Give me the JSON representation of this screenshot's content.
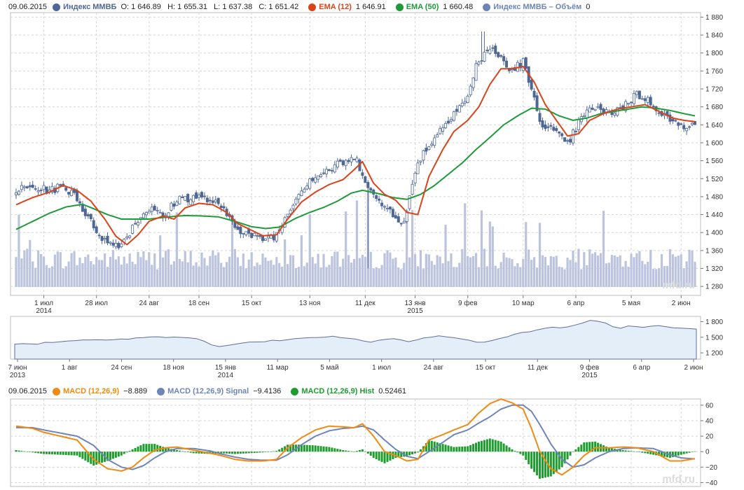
{
  "legend_main": {
    "date": "09.06.2015",
    "instrument": "Индекс ММВБ",
    "ohlc": "O: 1 646.89   H: 1 655.31   L: 1 637.38   C: 1 651.42",
    "ema12_label": "EMA (12)",
    "ema12_value": "1 646.91",
    "ema50_label": "EMA (50)",
    "ema50_value": "1 660.48",
    "volume_label": "Индекс ММВБ – Объём",
    "volume_value": "0"
  },
  "legend_macd": {
    "date": "09.06.2015",
    "macd_label": "MACD (12,26,9)",
    "macd_value": "−8.889",
    "signal_label": "MACD (12,26,9) Signal",
    "signal_value": "−9.4136",
    "hist_label": "MACD (12,26,9) Hist",
    "hist_value": "0.52461"
  },
  "watermark": "mfd.ru",
  "colors": {
    "candle": "#4f6796",
    "ema12": "#d9441a",
    "ema50": "#1f9a3a",
    "volume": "#bcc4dd",
    "macd": "#f08a12",
    "signal": "#6f85b8",
    "hist": "#1e9c2e",
    "nav_line": "#5f6e97",
    "nav_fill": "#e3eef9",
    "grid": "#d5d5d5"
  },
  "chart_data": [
    {
      "type": "candlestick",
      "title": "Индекс ММВБ",
      "ylim": [
        1260,
        1890
      ],
      "y_ticks": [
        "1 880",
        "1 840",
        "1 800",
        "1 760",
        "1 720",
        "1 680",
        "1 640",
        "1 600",
        "1 560",
        "1 520",
        "1 480",
        "1 440",
        "1 400",
        "1 360",
        "1 320",
        "1 280"
      ],
      "y_tick_values": [
        1880,
        1840,
        1800,
        1760,
        1720,
        1680,
        1640,
        1600,
        1560,
        1520,
        1480,
        1440,
        1400,
        1360,
        1320,
        1280
      ],
      "x_ticks": [
        {
          "label": "1 июл",
          "sub": "2014",
          "i": 10
        },
        {
          "label": "28 июл",
          "sub": "",
          "i": 29
        },
        {
          "label": "24 авг",
          "sub": "",
          "i": 48
        },
        {
          "label": "18 сен",
          "sub": "",
          "i": 66
        },
        {
          "label": "15 окт",
          "sub": "",
          "i": 85
        },
        {
          "label": "13 ноя",
          "sub": "",
          "i": 106
        },
        {
          "label": "11 дек",
          "sub": "",
          "i": 126
        },
        {
          "label": "13 янв",
          "sub": "2015",
          "i": 144
        },
        {
          "label": "9 фев",
          "sub": "",
          "i": 163
        },
        {
          "label": "10 мар",
          "sub": "",
          "i": 183
        },
        {
          "label": "6 апр",
          "sub": "",
          "i": 202
        },
        {
          "label": "5 мая",
          "sub": "",
          "i": 222
        },
        {
          "label": "2 июн",
          "sub": "",
          "i": 240
        }
      ],
      "n_bars": 246,
      "close_anchors": [
        [
          0,
          1495
        ],
        [
          6,
          1500
        ],
        [
          10,
          1495
        ],
        [
          16,
          1500
        ],
        [
          21,
          1490
        ],
        [
          26,
          1430
        ],
        [
          33,
          1375
        ],
        [
          38,
          1375
        ],
        [
          44,
          1430
        ],
        [
          49,
          1460
        ],
        [
          53,
          1430
        ],
        [
          58,
          1475
        ],
        [
          65,
          1480
        ],
        [
          71,
          1470
        ],
        [
          76,
          1440
        ],
        [
          82,
          1400
        ],
        [
          88,
          1385
        ],
        [
          94,
          1395
        ],
        [
          100,
          1470
        ],
        [
          106,
          1520
        ],
        [
          113,
          1540
        ],
        [
          119,
          1560
        ],
        [
          123,
          1560
        ],
        [
          126,
          1520
        ],
        [
          130,
          1470
        ],
        [
          135,
          1450
        ],
        [
          140,
          1420
        ],
        [
          145,
          1560
        ],
        [
          152,
          1620
        ],
        [
          158,
          1670
        ],
        [
          163,
          1700
        ],
        [
          166,
          1770
        ],
        [
          170,
          1810
        ],
        [
          175,
          1790
        ],
        [
          178,
          1760
        ],
        [
          183,
          1780
        ],
        [
          189,
          1650
        ],
        [
          194,
          1625
        ],
        [
          199,
          1595
        ],
        [
          203,
          1645
        ],
        [
          208,
          1680
        ],
        [
          213,
          1665
        ],
        [
          219,
          1680
        ],
        [
          224,
          1710
        ],
        [
          230,
          1685
        ],
        [
          236,
          1650
        ],
        [
          240,
          1635
        ],
        [
          245,
          1650
        ]
      ],
      "ema12_anchors": [
        [
          0,
          1462
        ],
        [
          6,
          1478
        ],
        [
          12,
          1490
        ],
        [
          17,
          1505
        ],
        [
          22,
          1494
        ],
        [
          27,
          1470
        ],
        [
          32,
          1430
        ],
        [
          36,
          1392
        ],
        [
          40,
          1373
        ],
        [
          44,
          1395
        ],
        [
          48,
          1425
        ],
        [
          53,
          1437
        ],
        [
          57,
          1430
        ],
        [
          61,
          1455
        ],
        [
          66,
          1465
        ],
        [
          71,
          1462
        ],
        [
          76,
          1445
        ],
        [
          80,
          1420
        ],
        [
          85,
          1405
        ],
        [
          89,
          1393
        ],
        [
          94,
          1395
        ],
        [
          98,
          1430
        ],
        [
          103,
          1468
        ],
        [
          108,
          1490
        ],
        [
          113,
          1507
        ],
        [
          118,
          1518
        ],
        [
          122,
          1540
        ],
        [
          125,
          1558
        ],
        [
          129,
          1510
        ],
        [
          133,
          1485
        ],
        [
          137,
          1472
        ],
        [
          141,
          1445
        ],
        [
          145,
          1440
        ],
        [
          149,
          1525
        ],
        [
          154,
          1585
        ],
        [
          158,
          1625
        ],
        [
          163,
          1650
        ],
        [
          167,
          1680
        ],
        [
          171,
          1730
        ],
        [
          175,
          1765
        ],
        [
          179,
          1765
        ],
        [
          183,
          1770
        ],
        [
          187,
          1735
        ],
        [
          191,
          1685
        ],
        [
          195,
          1650
        ],
        [
          199,
          1615
        ],
        [
          203,
          1620
        ],
        [
          207,
          1650
        ],
        [
          212,
          1665
        ],
        [
          217,
          1675
        ],
        [
          222,
          1680
        ],
        [
          227,
          1685
        ],
        [
          232,
          1670
        ],
        [
          237,
          1655
        ],
        [
          241,
          1650
        ],
        [
          245,
          1647
        ]
      ],
      "ema50_anchors": [
        [
          0,
          1407
        ],
        [
          6,
          1425
        ],
        [
          12,
          1443
        ],
        [
          18,
          1457
        ],
        [
          24,
          1463
        ],
        [
          28,
          1453
        ],
        [
          33,
          1440
        ],
        [
          38,
          1430
        ],
        [
          42,
          1430
        ],
        [
          48,
          1430
        ],
        [
          55,
          1435
        ],
        [
          61,
          1438
        ],
        [
          67,
          1437
        ],
        [
          73,
          1435
        ],
        [
          79,
          1425
        ],
        [
          85,
          1413
        ],
        [
          90,
          1409
        ],
        [
          95,
          1412
        ],
        [
          101,
          1432
        ],
        [
          106,
          1445
        ],
        [
          111,
          1456
        ],
        [
          116,
          1470
        ],
        [
          121,
          1488
        ],
        [
          125,
          1494
        ],
        [
          130,
          1488
        ],
        [
          136,
          1478
        ],
        [
          141,
          1474
        ],
        [
          146,
          1485
        ],
        [
          151,
          1505
        ],
        [
          156,
          1530
        ],
        [
          161,
          1555
        ],
        [
          166,
          1585
        ],
        [
          171,
          1612
        ],
        [
          176,
          1640
        ],
        [
          181,
          1660
        ],
        [
          186,
          1677
        ],
        [
          191,
          1675
        ],
        [
          196,
          1660
        ],
        [
          201,
          1650
        ],
        [
          206,
          1655
        ],
        [
          211,
          1665
        ],
        [
          216,
          1670
        ],
        [
          221,
          1675
        ],
        [
          226,
          1680
        ],
        [
          231,
          1677
        ],
        [
          236,
          1672
        ],
        [
          241,
          1665
        ],
        [
          245,
          1660
        ]
      ],
      "volume_ylim": [
        0,
        480
      ]
    },
    {
      "type": "area",
      "title": "navigator",
      "ylim": [
        1080,
        1900
      ],
      "y_ticks": [
        "1 800",
        "1 500",
        "1 200"
      ],
      "y_tick_values": [
        1800,
        1500,
        1200
      ],
      "x_ticks": [
        {
          "label": "7 июн",
          "sub": "2013"
        },
        {
          "label": "1 авг",
          "sub": ""
        },
        {
          "label": "24 сен",
          "sub": ""
        },
        {
          "label": "18 ноя",
          "sub": ""
        },
        {
          "label": "15 янв",
          "sub": "2014"
        },
        {
          "label": "11 мар",
          "sub": ""
        },
        {
          "label": "5 май",
          "sub": ""
        },
        {
          "label": "1 июл",
          "sub": ""
        },
        {
          "label": "24 авг",
          "sub": ""
        },
        {
          "label": "15 окт",
          "sub": ""
        },
        {
          "label": "11 дек",
          "sub": ""
        },
        {
          "label": "9 фев",
          "sub": "2015"
        },
        {
          "label": "6 апр",
          "sub": ""
        },
        {
          "label": "2 июн",
          "sub": ""
        }
      ],
      "values": [
        1365,
        1385,
        1375,
        1370,
        1395,
        1400,
        1410,
        1420,
        1430,
        1440,
        1445,
        1450,
        1455,
        1460,
        1465,
        1470,
        1480,
        1495,
        1500,
        1505,
        1495,
        1510,
        1500,
        1485,
        1470,
        1420,
        1350,
        1320,
        1340,
        1370,
        1380,
        1400,
        1410,
        1420,
        1445,
        1440,
        1460,
        1480,
        1490,
        1500,
        1500,
        1495,
        1510,
        1495,
        1480,
        1460,
        1430,
        1400,
        1440,
        1460,
        1470,
        1440,
        1420,
        1450,
        1480,
        1500,
        1520,
        1510,
        1490,
        1470,
        1440,
        1410,
        1400,
        1430,
        1470,
        1500,
        1550,
        1600,
        1610,
        1640,
        1670,
        1690,
        1680,
        1700,
        1740,
        1780,
        1830,
        1800,
        1770,
        1710,
        1680,
        1710,
        1700,
        1690,
        1710,
        1720,
        1700,
        1680,
        1670,
        1660,
        1650
      ]
    },
    {
      "type": "line",
      "title": "MACD (12,26,9)",
      "ylim": [
        -45,
        68
      ],
      "y_ticks": [
        "60",
        "40",
        "20",
        "0",
        "−20",
        "−40"
      ],
      "y_tick_values": [
        60,
        40,
        20,
        0,
        -20,
        -40
      ],
      "macd_anchors": [
        [
          0,
          33
        ],
        [
          6,
          30
        ],
        [
          10,
          25
        ],
        [
          16,
          20
        ],
        [
          22,
          15
        ],
        [
          28,
          -10
        ],
        [
          33,
          -22
        ],
        [
          38,
          -25
        ],
        [
          42,
          -20
        ],
        [
          46,
          -8
        ],
        [
          50,
          2
        ],
        [
          54,
          5
        ],
        [
          58,
          6
        ],
        [
          64,
          2
        ],
        [
          70,
          -2
        ],
        [
          74,
          -5
        ],
        [
          79,
          -10
        ],
        [
          84,
          -12
        ],
        [
          89,
          -12
        ],
        [
          94,
          -10
        ],
        [
          98,
          5
        ],
        [
          103,
          18
        ],
        [
          108,
          28
        ],
        [
          113,
          33
        ],
        [
          118,
          32
        ],
        [
          122,
          31
        ],
        [
          125,
          36
        ],
        [
          129,
          20
        ],
        [
          133,
          0
        ],
        [
          137,
          -5
        ],
        [
          141,
          -12
        ],
        [
          145,
          -10
        ],
        [
          149,
          15
        ],
        [
          154,
          22
        ],
        [
          158,
          28
        ],
        [
          163,
          35
        ],
        [
          167,
          50
        ],
        [
          171,
          62
        ],
        [
          175,
          68
        ],
        [
          179,
          63
        ],
        [
          183,
          55
        ],
        [
          186,
          30
        ],
        [
          189,
          0
        ],
        [
          193,
          -22
        ],
        [
          197,
          -30
        ],
        [
          201,
          -20
        ],
        [
          205,
          -5
        ],
        [
          209,
          5
        ],
        [
          214,
          5
        ],
        [
          219,
          6
        ],
        [
          224,
          5
        ],
        [
          230,
          0
        ],
        [
          236,
          -12
        ],
        [
          240,
          -12
        ],
        [
          245,
          -9
        ]
      ],
      "signal_anchors": [
        [
          0,
          31
        ],
        [
          6,
          31
        ],
        [
          10,
          28
        ],
        [
          16,
          24
        ],
        [
          22,
          20
        ],
        [
          28,
          8
        ],
        [
          33,
          -10
        ],
        [
          38,
          -20
        ],
        [
          42,
          -23
        ],
        [
          46,
          -18
        ],
        [
          50,
          -8
        ],
        [
          54,
          0
        ],
        [
          58,
          4
        ],
        [
          64,
          4
        ],
        [
          70,
          1
        ],
        [
          74,
          -3
        ],
        [
          79,
          -7
        ],
        [
          84,
          -10
        ],
        [
          89,
          -11
        ],
        [
          94,
          -11
        ],
        [
          98,
          -4
        ],
        [
          103,
          9
        ],
        [
          108,
          20
        ],
        [
          113,
          27
        ],
        [
          118,
          30
        ],
        [
          122,
          31
        ],
        [
          125,
          33
        ],
        [
          129,
          28
        ],
        [
          133,
          15
        ],
        [
          137,
          3
        ],
        [
          141,
          -6
        ],
        [
          145,
          -9
        ],
        [
          149,
          0
        ],
        [
          154,
          12
        ],
        [
          158,
          22
        ],
        [
          163,
          28
        ],
        [
          167,
          37
        ],
        [
          171,
          45
        ],
        [
          175,
          55
        ],
        [
          179,
          60
        ],
        [
          183,
          60
        ],
        [
          186,
          52
        ],
        [
          189,
          35
        ],
        [
          193,
          10
        ],
        [
          197,
          -10
        ],
        [
          201,
          -20
        ],
        [
          205,
          -17
        ],
        [
          209,
          -8
        ],
        [
          214,
          0
        ],
        [
          219,
          4
        ],
        [
          224,
          5
        ],
        [
          230,
          4
        ],
        [
          236,
          -4
        ],
        [
          240,
          -8
        ],
        [
          245,
          -9.4
        ]
      ]
    }
  ]
}
